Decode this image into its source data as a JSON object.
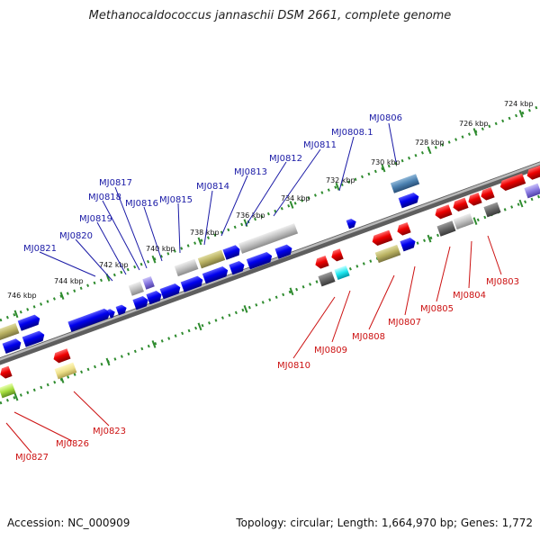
{
  "title": "Methanocaldococcus jannaschii DSM 2661, complete genome",
  "footer": {
    "accession": "Accession: NC_000909",
    "summary": "Topology: circular; Length: 1,664,970 bp; Genes: 1,772"
  },
  "colors": {
    "forward_gene": "#0000ee",
    "reverse_gene": "#ee0000",
    "forward_label": "#1a1aa6",
    "reverse_label": "#cc1111",
    "scale_dots": "#2e8b2e",
    "backbone": "#888888"
  },
  "scale_ticks": [
    "724 kbp",
    "726 kbp",
    "728 kbp",
    "730 kbp",
    "732 kbp",
    "734 kbp",
    "736 kbp",
    "738 kbp",
    "740 kbp",
    "742 kbp",
    "744 kbp",
    "746 kbp"
  ],
  "forward_genes": [
    "MJ0806",
    "MJ0808.1",
    "MJ0811",
    "MJ0812",
    "MJ0813",
    "MJ0814",
    "MJ0815",
    "MJ0816",
    "MJ0817",
    "MJ0818",
    "MJ0819",
    "MJ0820",
    "MJ0821"
  ],
  "reverse_genes": [
    "MJ0803",
    "MJ0804",
    "MJ0805",
    "MJ0807",
    "MJ0808",
    "MJ0809",
    "MJ0810",
    "MJ0823",
    "MJ0826",
    "MJ0827"
  ]
}
